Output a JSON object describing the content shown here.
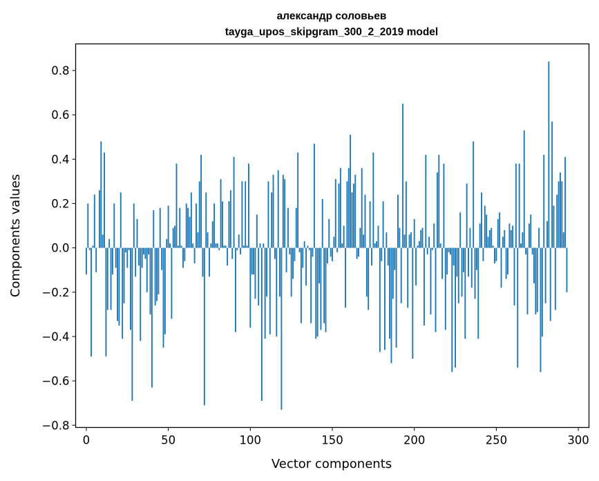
{
  "chart_data": {
    "type": "bar",
    "title": "александр соловьев",
    "subtitle": "tayga_upos_skipgram_300_2_2019 model",
    "xlabel": "Vector components",
    "ylabel": "Components values",
    "xlim": [
      -6.5,
      306.5
    ],
    "ylim": [
      -0.81,
      0.92
    ],
    "xticks": [
      0,
      50,
      100,
      150,
      200,
      250,
      300
    ],
    "xtick_labels": [
      "0",
      "50",
      "100",
      "150",
      "200",
      "250",
      "300"
    ],
    "yticks": [
      -0.8,
      -0.6,
      -0.4,
      -0.2,
      0.0,
      0.2,
      0.4,
      0.6,
      0.8
    ],
    "ytick_labels": [
      "−0.8",
      "−0.6",
      "−0.4",
      "−0.2",
      "0.0",
      "0.2",
      "0.4",
      "0.6",
      "0.8"
    ],
    "grid": false,
    "bar_color": "#1f77b4",
    "x": "0..299 (component index)",
    "values": [
      -0.12,
      0.2,
      -0.01,
      -0.49,
      0.01,
      0.24,
      -0.11,
      0.0,
      0.26,
      0.48,
      0.06,
      0.43,
      -0.49,
      -0.28,
      0.04,
      -0.28,
      -0.12,
      0.2,
      -0.09,
      -0.33,
      -0.35,
      0.25,
      -0.41,
      -0.25,
      -0.02,
      -0.09,
      -0.01,
      -0.37,
      -0.69,
      0.2,
      -0.13,
      0.13,
      -0.08,
      -0.42,
      -0.09,
      -0.03,
      -0.05,
      -0.2,
      -0.03,
      -0.3,
      -0.63,
      0.17,
      -0.26,
      -0.24,
      -0.21,
      0.18,
      -0.1,
      -0.45,
      -0.39,
      0.04,
      0.19,
      0.02,
      -0.32,
      0.09,
      0.1,
      0.38,
      0.01,
      0.18,
      0.01,
      -0.09,
      -0.06,
      0.2,
      0.18,
      0.14,
      0.25,
      0.02,
      -0.07,
      0.2,
      0.07,
      0.3,
      0.42,
      -0.13,
      -0.71,
      0.25,
      0.07,
      -0.13,
      0.02,
      0.12,
      0.2,
      0.02,
      0.02,
      -0.01,
      0.31,
      0.21,
      0.01,
      0.01,
      -0.08,
      0.21,
      0.26,
      -0.05,
      0.41,
      -0.38,
      -0.01,
      0.06,
      -0.03,
      0.3,
      0.01,
      0.3,
      0.01,
      0.38,
      -0.36,
      -0.12,
      -0.12,
      -0.23,
      0.15,
      -0.26,
      0.02,
      -0.69,
      0.02,
      -0.41,
      -0.22,
      0.3,
      -0.39,
      0.25,
      0.33,
      -0.05,
      -0.4,
      0.35,
      -0.22,
      -0.73,
      0.33,
      0.31,
      -0.11,
      0.18,
      -0.03,
      -0.22,
      -0.14,
      -0.06,
      0.18,
      0.43,
      -0.02,
      -0.34,
      -0.09,
      0.03,
      -0.17,
      0.01,
      -0.01,
      -0.34,
      -0.04,
      0.47,
      -0.41,
      -0.4,
      -0.16,
      -0.37,
      0.22,
      -0.34,
      -0.38,
      -0.07,
      0.13,
      -0.04,
      -0.06,
      0.05,
      0.31,
      -0.02,
      0.29,
      0.36,
      0.02,
      0.1,
      -0.27,
      0.3,
      0.36,
      0.51,
      0.25,
      0.29,
      0.33,
      -0.05,
      -0.04,
      0.09,
      0.36,
      0.06,
      0.24,
      -0.22,
      -0.28,
      0.21,
      -0.08,
      0.43,
      0.02,
      0.03,
      0.1,
      -0.47,
      -0.06,
      0.21,
      -0.46,
      0.07,
      -0.08,
      -0.41,
      -0.52,
      -0.23,
      -0.1,
      -0.45,
      0.24,
      0.09,
      -0.25,
      0.65,
      0.06,
      0.3,
      -0.27,
      0.06,
      0.07,
      -0.5,
      0.13,
      -0.17,
      0.01,
      0.03,
      0.08,
      0.09,
      -0.35,
      0.42,
      -0.03,
      0.05,
      -0.3,
      -0.01,
      0.11,
      -0.38,
      0.34,
      0.42,
      0.02,
      -0.14,
      0.38,
      -0.37,
      -0.12,
      -0.02,
      -0.03,
      -0.56,
      -0.08,
      -0.54,
      -0.13,
      -0.25,
      0.16,
      -0.22,
      -0.11,
      -0.41,
      0.29,
      -0.13,
      0.09,
      -0.18,
      0.48,
      -0.23,
      -0.1,
      -0.41,
      0.11,
      0.25,
      -0.06,
      0.19,
      0.15,
      0.05,
      0.08,
      0.09,
      0.01,
      -0.07,
      -0.06,
      0.13,
      0.16,
      -0.18,
      0.05,
      0.08,
      -0.14,
      -0.12,
      0.11,
      0.08,
      0.1,
      -0.26,
      0.38,
      -0.54,
      0.38,
      0.02,
      0.07,
      0.53,
      -0.03,
      -0.3,
      0.11,
      0.15,
      -0.03,
      -0.16,
      -0.3,
      -0.29,
      0.09,
      -0.56,
      -0.4,
      0.42,
      -0.25,
      0.12,
      0.84,
      -0.33,
      0.57,
      0.19,
      -0.28,
      0.24,
      0.3,
      0.34,
      0.3,
      0.07,
      0.41,
      -0.2
    ]
  }
}
